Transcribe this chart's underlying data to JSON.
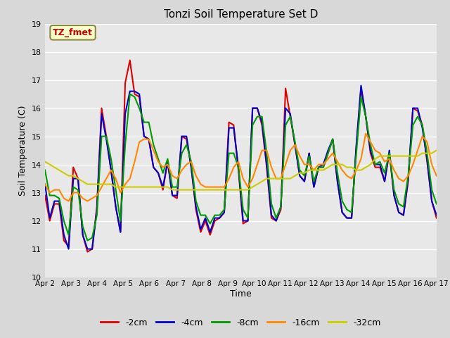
{
  "title": "Tonzi Soil Temperature Set D",
  "xlabel": "Time",
  "ylabel": "Soil Temperature (C)",
  "ylim": [
    10.0,
    19.0
  ],
  "yticks": [
    10.0,
    11.0,
    12.0,
    13.0,
    14.0,
    15.0,
    16.0,
    17.0,
    18.0,
    19.0
  ],
  "x_labels": [
    "Apr 2",
    "Apr 3",
    "Apr 4",
    "Apr 5",
    "Apr 6",
    "Apr 7",
    "Apr 8",
    "Apr 9",
    "Apr 10",
    "Apr 11",
    "Apr 12",
    "Apr 13",
    "Apr 14",
    "Apr 15",
    "Apr 16",
    "Apr 17"
  ],
  "annotation_text": "TZ_fmet",
  "annotation_color": "#cc0000",
  "annotation_bg": "#ffffcc",
  "annotation_border": "#888844",
  "series_colors": [
    "#dd0000",
    "#0000cc",
    "#009900",
    "#ff8800",
    "#cccc00"
  ],
  "series_labels": [
    "-2cm",
    "-4cm",
    "-8cm",
    "-16cm",
    "-32cm"
  ],
  "fig_bg": "#d8d8d8",
  "plot_bg": "#e8e8e8",
  "grid_color": "#ffffff",
  "line_width": 1.5,
  "series_2cm": [
    12.9,
    12.0,
    12.6,
    12.6,
    11.3,
    11.1,
    13.9,
    13.5,
    11.5,
    10.9,
    11.0,
    12.5,
    16.0,
    15.0,
    13.8,
    12.5,
    11.6,
    16.9,
    17.7,
    16.5,
    16.4,
    15.0,
    14.9,
    13.9,
    13.7,
    13.1,
    14.1,
    12.9,
    12.8,
    15.0,
    14.9,
    13.9,
    12.4,
    11.6,
    12.0,
    11.5,
    12.0,
    12.1,
    12.3,
    15.5,
    15.4,
    13.8,
    11.9,
    12.0,
    16.0,
    16.0,
    15.4,
    13.9,
    12.1,
    12.0,
    12.4,
    16.7,
    15.7,
    14.7,
    13.6,
    13.4,
    14.4,
    13.2,
    13.9,
    13.9,
    14.4,
    14.9,
    13.4,
    12.3,
    12.1,
    12.1,
    14.6,
    16.7,
    15.7,
    14.4,
    13.9,
    13.9,
    13.4,
    14.4,
    12.9,
    12.3,
    12.2,
    13.4,
    16.0,
    15.9,
    15.4,
    14.1,
    12.7,
    12.1
  ],
  "series_4cm": [
    13.3,
    12.1,
    12.7,
    12.7,
    11.5,
    11.0,
    13.5,
    13.5,
    11.5,
    11.0,
    11.0,
    12.4,
    15.8,
    14.9,
    13.8,
    12.5,
    11.6,
    15.8,
    16.6,
    16.6,
    16.5,
    15.0,
    14.9,
    13.9,
    13.7,
    13.2,
    14.1,
    12.9,
    12.9,
    15.0,
    15.0,
    13.9,
    12.5,
    11.7,
    12.1,
    11.6,
    12.1,
    12.1,
    12.3,
    15.3,
    15.3,
    13.9,
    12.0,
    12.0,
    16.0,
    16.0,
    15.5,
    14.0,
    12.2,
    12.0,
    12.5,
    16.0,
    15.8,
    14.7,
    13.6,
    13.4,
    14.4,
    13.2,
    13.9,
    14.0,
    14.5,
    14.9,
    13.4,
    12.3,
    12.1,
    12.1,
    14.7,
    16.8,
    15.7,
    14.5,
    14.0,
    14.0,
    13.4,
    14.5,
    12.9,
    12.3,
    12.2,
    13.5,
    16.0,
    16.0,
    15.3,
    14.2,
    12.7,
    12.2
  ],
  "series_8cm": [
    13.8,
    12.9,
    12.9,
    12.8,
    12.0,
    11.5,
    13.2,
    13.1,
    11.8,
    11.3,
    11.4,
    12.2,
    15.0,
    15.0,
    14.2,
    13.1,
    12.0,
    14.7,
    16.5,
    16.4,
    16.0,
    15.5,
    15.5,
    14.7,
    14.2,
    13.7,
    14.2,
    13.2,
    13.2,
    14.4,
    14.7,
    14.1,
    12.7,
    12.2,
    12.2,
    11.9,
    12.2,
    12.2,
    12.4,
    14.4,
    14.4,
    13.9,
    12.4,
    12.1,
    15.4,
    15.7,
    15.7,
    14.4,
    12.6,
    12.1,
    12.5,
    15.4,
    15.7,
    14.8,
    13.8,
    13.6,
    14.3,
    13.4,
    13.9,
    13.9,
    14.4,
    14.9,
    13.7,
    12.7,
    12.4,
    12.3,
    14.4,
    16.4,
    15.7,
    14.7,
    14.0,
    14.1,
    13.7,
    14.4,
    13.1,
    12.6,
    12.5,
    13.6,
    15.4,
    15.7,
    15.4,
    14.4,
    13.1,
    12.6
  ],
  "series_16cm": [
    13.3,
    13.0,
    13.1,
    13.1,
    12.8,
    12.7,
    13.0,
    13.0,
    12.8,
    12.7,
    12.8,
    12.9,
    13.2,
    13.5,
    13.8,
    13.5,
    13.0,
    13.3,
    13.5,
    14.1,
    14.8,
    14.9,
    14.9,
    14.5,
    14.1,
    13.9,
    14.0,
    13.6,
    13.5,
    13.8,
    14.0,
    14.1,
    13.6,
    13.3,
    13.2,
    13.2,
    13.2,
    13.2,
    13.2,
    13.5,
    13.9,
    14.1,
    13.5,
    13.2,
    13.5,
    14.0,
    14.5,
    14.5,
    13.9,
    13.5,
    13.5,
    14.0,
    14.5,
    14.7,
    14.3,
    14.0,
    14.0,
    13.8,
    14.0,
    14.0,
    14.2,
    14.4,
    14.1,
    13.8,
    13.6,
    13.5,
    13.8,
    14.2,
    15.1,
    14.8,
    14.5,
    14.4,
    14.1,
    14.2,
    13.8,
    13.5,
    13.4,
    13.6,
    14.0,
    14.5,
    15.0,
    14.8,
    14.0,
    13.6
  ],
  "series_32cm": [
    14.1,
    14.0,
    13.9,
    13.8,
    13.7,
    13.6,
    13.6,
    13.5,
    13.4,
    13.3,
    13.3,
    13.3,
    13.3,
    13.3,
    13.3,
    13.2,
    13.2,
    13.2,
    13.2,
    13.2,
    13.2,
    13.2,
    13.2,
    13.2,
    13.2,
    13.2,
    13.2,
    13.1,
    13.1,
    13.1,
    13.1,
    13.1,
    13.1,
    13.1,
    13.1,
    13.1,
    13.1,
    13.1,
    13.1,
    13.1,
    13.1,
    13.1,
    13.1,
    13.1,
    13.2,
    13.3,
    13.4,
    13.5,
    13.5,
    13.5,
    13.5,
    13.5,
    13.5,
    13.6,
    13.7,
    13.7,
    13.8,
    13.8,
    13.8,
    13.8,
    13.9,
    14.0,
    14.0,
    14.0,
    13.9,
    13.9,
    13.8,
    13.8,
    13.9,
    14.0,
    14.2,
    14.3,
    14.3,
    14.3,
    14.3,
    14.3,
    14.3,
    14.3,
    14.3,
    14.3,
    14.4,
    14.4,
    14.4,
    14.5
  ]
}
